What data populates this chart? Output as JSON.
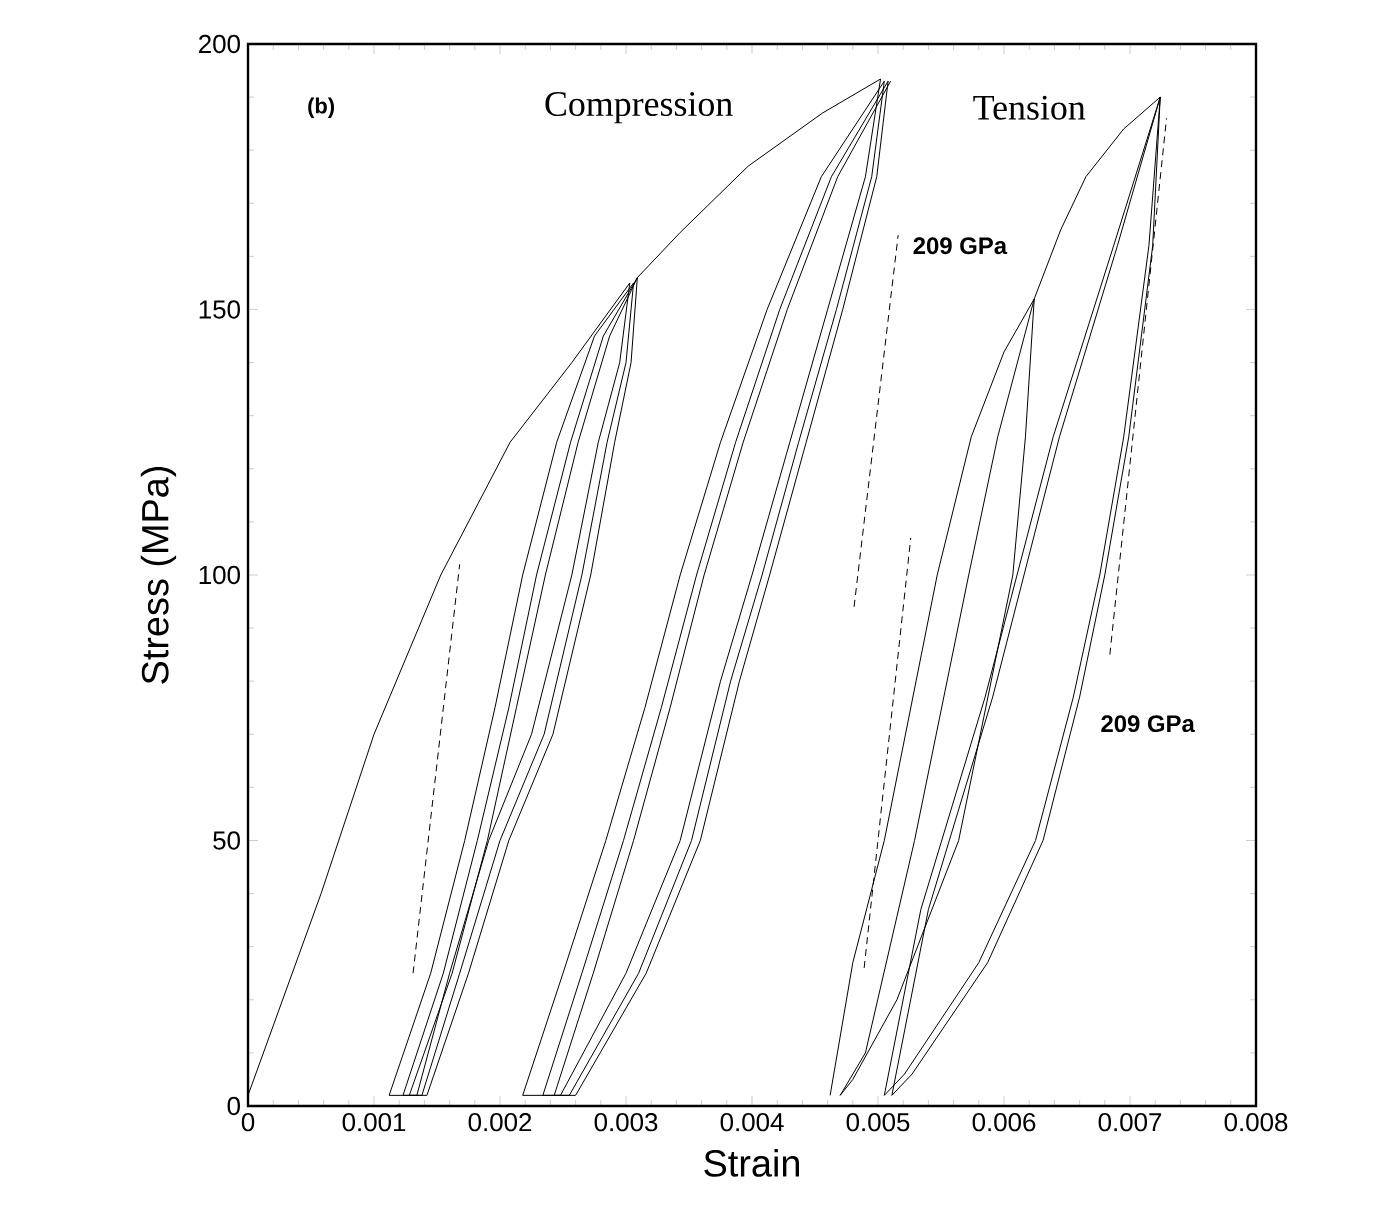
{
  "chart_data": {
    "type": "line",
    "xlabel": "Strain",
    "ylabel": "Stress (MPa)",
    "xlim": [
      0,
      0.008
    ],
    "ylim": [
      0,
      200
    ],
    "xticks": [
      0,
      0.001,
      0.002,
      0.003,
      0.004,
      0.005,
      0.006,
      0.007,
      0.008
    ],
    "yticks": [
      0,
      50,
      100,
      150,
      200
    ],
    "marker": "none",
    "annotations": [
      "(b)",
      "Compression",
      "Tension",
      "209 GPa",
      "209 GPa"
    ],
    "series": [
      {
        "color": "#000000",
        "x": [
          0,
          0.00058,
          0.001,
          0.00153,
          0.00208,
          0.00257,
          0.00303,
          0.00295,
          0.00278,
          0.00257,
          0.00225,
          0.00191,
          0.0016,
          0.00134,
          0.00112,
          0.00145,
          0.00172,
          0.00196,
          0.00218,
          0.00245,
          0.00275,
          0.00306,
          0.003,
          0.00285,
          0.00265,
          0.00235,
          0.002,
          0.00168,
          0.00138,
          0.00123,
          0.00155,
          0.00182,
          0.00207,
          0.00229,
          0.00256,
          0.00282,
          0.00309,
          0.00304,
          0.00291,
          0.00272,
          0.00242,
          0.00207,
          0.00175,
          0.00142,
          0.00128,
          0.00162,
          0.0019,
          0.00213,
          0.00236,
          0.00262,
          0.00287,
          0.00309,
          0.00343,
          0.00397,
          0.00456,
          0.00502,
          0.0049,
          0.0046,
          0.0043,
          0.004,
          0.00375,
          0.00343,
          0.003,
          0.00248,
          0.00218,
          0.0025,
          0.00284,
          0.00315,
          0.00343,
          0.00375,
          0.00412,
          0.00455,
          0.00505,
          0.00495,
          0.00467,
          0.00437,
          0.00408,
          0.00383,
          0.00352,
          0.0031,
          0.00255,
          0.00234,
          0.00265,
          0.00298,
          0.00328,
          0.00356,
          0.00387,
          0.00422,
          0.00463,
          0.00508,
          0.00499,
          0.00472,
          0.00443,
          0.00414,
          0.0039,
          0.00359,
          0.00316,
          0.0026,
          0.00243,
          0.00274,
          0.00306,
          0.00335,
          0.00362,
          0.00393,
          0.00428,
          0.00468,
          0.0051
        ],
        "values": [
          2,
          40,
          70,
          100,
          125,
          140,
          155,
          140,
          125,
          100,
          70,
          50,
          25,
          2,
          2,
          25,
          50,
          75,
          100,
          125,
          145,
          155,
          140,
          125,
          100,
          70,
          50,
          25,
          2,
          2,
          25,
          50,
          75,
          100,
          125,
          145,
          156,
          140,
          125,
          100,
          70,
          50,
          25,
          2,
          2,
          25,
          50,
          75,
          100,
          125,
          145,
          156,
          164.5,
          177,
          187,
          193.4,
          175,
          150,
          125,
          100,
          80,
          50,
          25,
          2,
          2,
          25,
          50,
          75,
          100,
          125,
          150,
          175,
          193,
          175,
          150,
          125,
          100,
          80,
          50,
          25,
          2,
          2,
          25,
          50,
          75,
          100,
          125,
          150,
          175,
          193,
          175,
          150,
          125,
          100,
          80,
          50,
          25,
          2,
          2,
          25,
          50,
          75,
          100,
          125,
          150,
          175,
          193
        ]
      },
      {
        "color": "#000000",
        "x": [
          0.00462,
          0.0048,
          0.00505,
          0.00547,
          0.00574,
          0.006,
          0.00624,
          0.00595,
          0.00572,
          0.00529,
          0.0049,
          0.0047,
          0.0048,
          0.00515,
          0.00564,
          0.00607,
          0.00617,
          0.00624,
          0.00645,
          0.00665,
          0.00695,
          0.00724,
          0.00715,
          0.00695,
          0.00676,
          0.00655,
          0.00625,
          0.0058,
          0.00521,
          0.00505,
          0.00534,
          0.00585,
          0.00639,
          0.00687,
          0.00724,
          0.00718,
          0.00699,
          0.0068,
          0.0066,
          0.00631,
          0.00587,
          0.00527,
          0.00511,
          0.0054,
          0.00591,
          0.00644,
          0.0069,
          0.00724
        ],
        "values": [
          2,
          27,
          50,
          100,
          126,
          142,
          152,
          126,
          100,
          50,
          10,
          2,
          5,
          20,
          50,
          100,
          126,
          152,
          165,
          175,
          184,
          190,
          162,
          126,
          100,
          77,
          50,
          27,
          6,
          2,
          37,
          77,
          126,
          162,
          190,
          162,
          126,
          100,
          77,
          50,
          27,
          6,
          2,
          37,
          77,
          126,
          162,
          190
        ]
      },
      {
        "color": "#000000",
        "line_style": "dashed",
        "x": [
          0.00131,
          0.00168
        ],
        "values": [
          25,
          102
        ]
      },
      {
        "color": "#000000",
        "line_style": "dashed",
        "x": [
          0.00481,
          0.00516
        ],
        "values": [
          94,
          164
        ]
      },
      {
        "color": "#000000",
        "line_style": "dashed",
        "x": [
          0.00489,
          0.00526
        ],
        "values": [
          26,
          107
        ]
      },
      {
        "color": "#000000",
        "line_style": "dashed",
        "x": [
          0.00684,
          0.00729
        ],
        "values": [
          85,
          186
        ]
      }
    ]
  }
}
